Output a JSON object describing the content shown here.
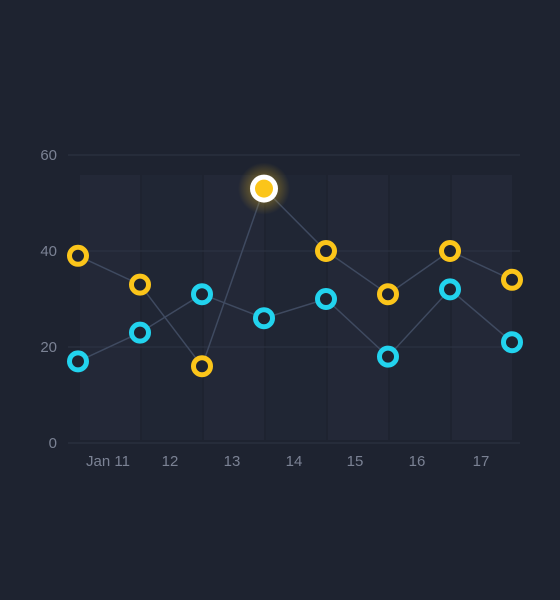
{
  "colors": {
    "background": "#1e2330",
    "grid": "#2d3445",
    "band": "#232938",
    "connector": "#3f4a60",
    "tick_text": "#7b8294",
    "series_cyan": "#22d3ee",
    "series_yellow": "#fbc51a",
    "marker_core": "#1e2330",
    "highlight_ring": "#ffffff"
  },
  "chart_data": {
    "type": "scatter",
    "title": "",
    "xlabel": "",
    "ylabel": "",
    "grid": true,
    "legend": "none",
    "ylim": [
      0,
      60
    ],
    "y_ticks": [
      "0",
      "20",
      "40",
      "60"
    ],
    "x_tick_labels": [
      "Jan 11",
      "12",
      "13",
      "14",
      "15",
      "16",
      "17"
    ],
    "categories": [
      "Jan 11",
      "12",
      "13",
      "14",
      "15",
      "16",
      "17"
    ],
    "series": [
      {
        "color": "cyan",
        "points": [
          {
            "x": "Jan 11",
            "y": 17
          },
          {
            "x": "Jan 11",
            "y": 23
          },
          {
            "x": "12",
            "y": 31
          },
          {
            "x": "13",
            "y": 26
          },
          {
            "x": "14",
            "y": 30
          },
          {
            "x": "15",
            "y": 18
          },
          {
            "x": "16",
            "y": 32
          },
          {
            "x": "17",
            "y": 21
          }
        ]
      },
      {
        "color": "yellow",
        "points": [
          {
            "x": "Jan 11",
            "y": 39
          },
          {
            "x": "Jan 11",
            "y": 33
          },
          {
            "x": "12",
            "y": 16
          },
          {
            "x": "13",
            "y": 53,
            "highlighted": true
          },
          {
            "x": "14",
            "y": 40
          },
          {
            "x": "15",
            "y": 31
          },
          {
            "x": "16",
            "y": 40
          },
          {
            "x": "17",
            "y": 34
          }
        ]
      }
    ]
  }
}
